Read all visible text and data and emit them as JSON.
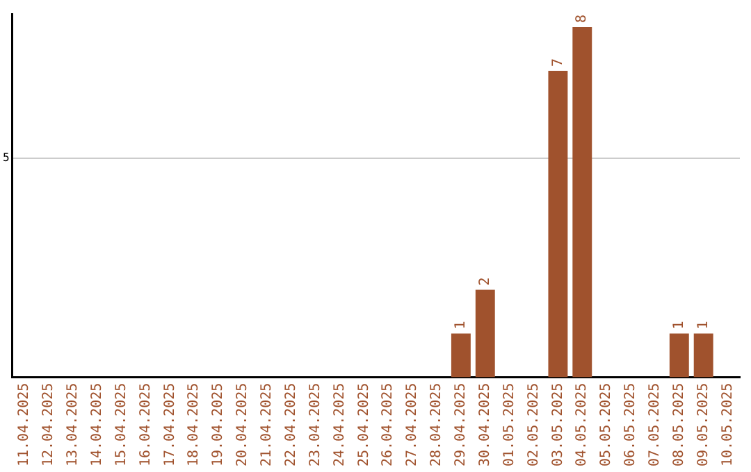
{
  "chart_data": {
    "type": "bar",
    "categories": [
      "11.04.2025",
      "12.04.2025",
      "13.04.2025",
      "14.04.2025",
      "15.04.2025",
      "16.04.2025",
      "17.04.2025",
      "18.04.2025",
      "19.04.2025",
      "20.04.2025",
      "21.04.2025",
      "22.04.2025",
      "23.04.2025",
      "24.04.2025",
      "25.04.2025",
      "26.04.2025",
      "27.04.2025",
      "28.04.2025",
      "29.04.2025",
      "30.04.2025",
      "01.05.2025",
      "02.05.2025",
      "03.05.2025",
      "04.05.2025",
      "05.05.2025",
      "06.05.2025",
      "07.05.2025",
      "08.05.2025",
      "09.05.2025",
      "10.05.2025"
    ],
    "values": [
      null,
      null,
      null,
      null,
      null,
      null,
      null,
      null,
      null,
      null,
      null,
      null,
      null,
      null,
      null,
      null,
      null,
      null,
      1,
      2,
      null,
      null,
      7,
      8,
      null,
      null,
      null,
      1,
      1,
      null
    ],
    "color": "#a0522d",
    "ylim": [
      0,
      8.3
    ],
    "yticks": [
      5
    ],
    "grid": "y",
    "legend": false,
    "data_labels": true
  }
}
